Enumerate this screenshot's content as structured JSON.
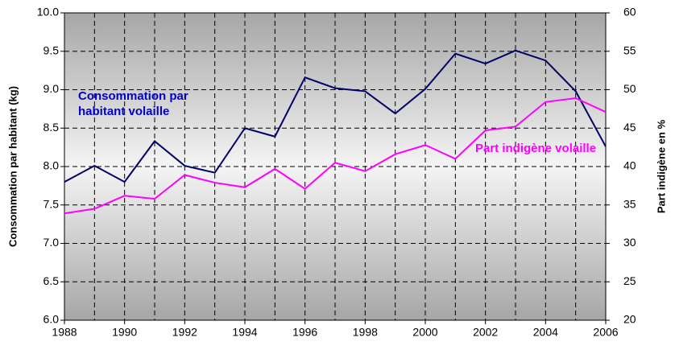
{
  "chart_data": {
    "type": "line",
    "x": [
      1988,
      1989,
      1990,
      1991,
      1992,
      1993,
      1994,
      1995,
      1996,
      1997,
      1998,
      1999,
      2000,
      2001,
      2002,
      2003,
      2004,
      2005,
      2006
    ],
    "xlim": [
      1988,
      2006
    ],
    "xticks": [
      1988,
      1990,
      1992,
      1994,
      1996,
      1998,
      2000,
      2002,
      2004,
      2006
    ],
    "ylim": [
      6,
      10
    ],
    "yticks": [
      {
        "value": 6,
        "label": "6.0"
      },
      {
        "value": 6.5,
        "label": "6.5"
      },
      {
        "value": 7,
        "label": "7.0"
      },
      {
        "value": 7.5,
        "label": "7.5"
      },
      {
        "value": 8,
        "label": "8.0"
      },
      {
        "value": 8.5,
        "label": "8.5"
      },
      {
        "value": 9,
        "label": "9.0"
      },
      {
        "value": 9.5,
        "label": "9.5"
      },
      {
        "value": 10,
        "label": "10.0"
      }
    ],
    "y2lim": [
      20,
      60
    ],
    "y2ticks": [
      20,
      25,
      30,
      35,
      40,
      45,
      50,
      55,
      60
    ],
    "ylabel": "Consommation par habitant (kg)",
    "y2label": "Part indigène en %",
    "grid": true,
    "series": [
      {
        "name": [
          "Consommation par",
          "habitant volaille"
        ],
        "color": "#000066",
        "values": [
          7.8,
          8.01,
          7.8,
          8.33,
          8.01,
          7.92,
          8.5,
          8.39,
          9.16,
          9.02,
          8.98,
          8.69,
          9.01,
          9.47,
          9.34,
          9.51,
          9.38,
          8.98,
          8.26
        ]
      },
      {
        "name": [
          "Part indigène volaille"
        ],
        "color": "#ff00ff",
        "axis": "y2",
        "values": [
          33.9,
          34.5,
          36.2,
          35.8,
          38.9,
          37.9,
          37.3,
          39.7,
          37.1,
          40.5,
          39.4,
          41.6,
          42.8,
          41.0,
          44.7,
          45.2,
          48.4,
          48.9,
          47.1
        ]
      }
    ]
  }
}
